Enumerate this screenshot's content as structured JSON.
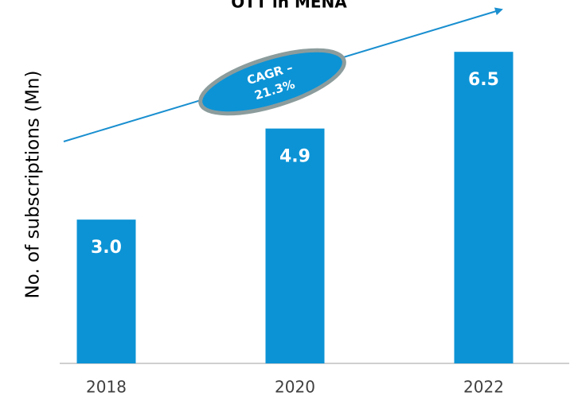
{
  "chart_data": {
    "type": "bar",
    "title": "OTT in MENA",
    "y_label": "No. of subscriptions (Mn)",
    "categories": [
      "2018",
      "2020",
      "2022"
    ],
    "values": [
      3.0,
      4.9,
      6.5
    ],
    "value_labels": [
      "3.0",
      "4.9",
      "6.5"
    ],
    "color": "#0b93d6",
    "ylim": [
      0,
      7.2
    ],
    "annotation": [
      "CAGR –",
      "21.3%"
    ]
  }
}
